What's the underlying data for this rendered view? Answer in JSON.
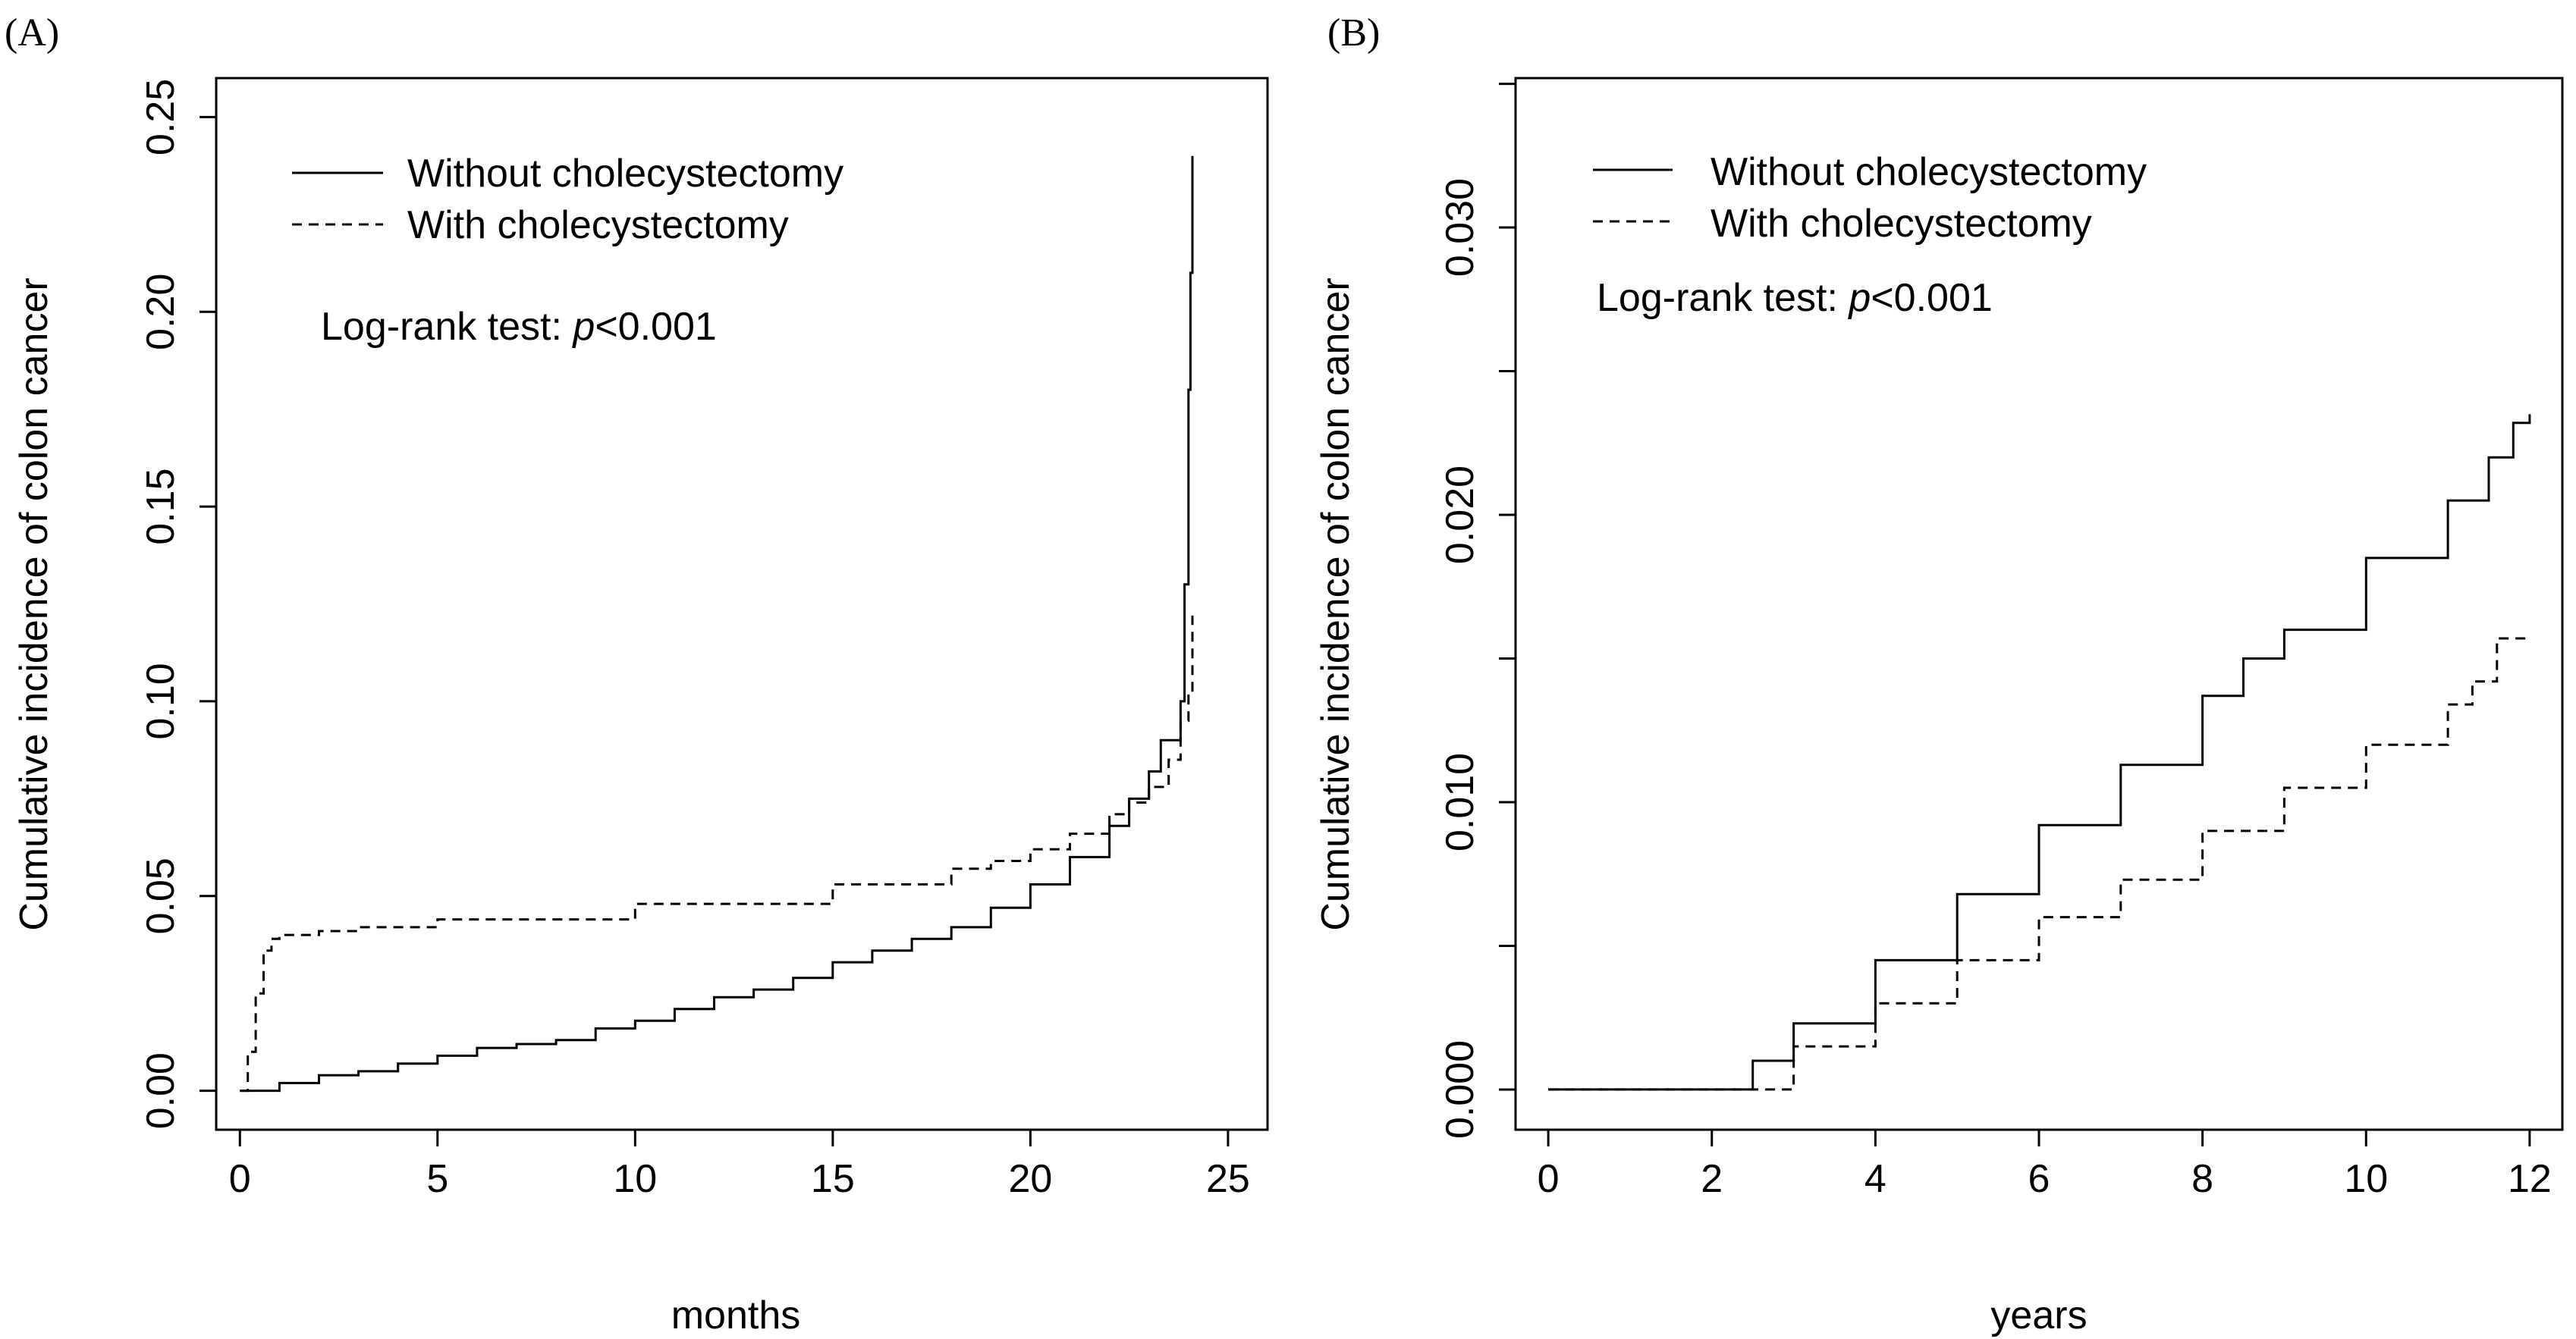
{
  "chart_data": [
    {
      "type": "line",
      "panel_label": "(A)",
      "title": "",
      "xlabel": "months",
      "ylabel": "Cumulative incidence of colon cancer",
      "xlim": [
        -0.6,
        26.0
      ],
      "ylim": [
        -0.01,
        0.26
      ],
      "xticks": [
        0,
        5,
        10,
        15,
        20,
        25
      ],
      "xtick_labels": [
        "0",
        "5",
        "10",
        "15",
        "20",
        "25"
      ],
      "yticks": [
        0.0,
        0.05,
        0.1,
        0.15,
        0.2,
        0.25
      ],
      "ytick_labels": [
        "0.00",
        "0.05",
        "0.10",
        "0.15",
        "0.20",
        "0.25"
      ],
      "grid": false,
      "legend_position": "top-left",
      "annotation": {
        "prefix": "Log-rank test: ",
        "italic": "p",
        "suffix": "<0.001"
      },
      "series": [
        {
          "name": "Without cholecystectomy",
          "linestyle": "solid",
          "x": [
            0,
            1,
            2,
            3,
            4,
            5,
            6,
            7,
            8,
            9,
            10,
            11,
            12,
            13,
            14,
            15,
            16,
            17,
            18,
            19,
            20,
            21,
            22,
            22.5,
            23,
            23.3,
            23.6,
            23.8,
            23.9,
            24.0,
            24.05,
            24.1
          ],
          "y": [
            0.0,
            0.002,
            0.004,
            0.005,
            0.007,
            0.009,
            0.011,
            0.012,
            0.013,
            0.016,
            0.018,
            0.021,
            0.024,
            0.026,
            0.029,
            0.033,
            0.036,
            0.039,
            0.042,
            0.047,
            0.053,
            0.06,
            0.068,
            0.075,
            0.082,
            0.09,
            0.09,
            0.1,
            0.13,
            0.18,
            0.21,
            0.24
          ]
        },
        {
          "name": "With cholecystectomy",
          "linestyle": "dashed",
          "x": [
            0,
            0.2,
            0.4,
            0.6,
            0.8,
            1,
            2,
            3,
            5,
            10,
            15,
            18,
            19,
            20,
            21,
            22,
            22.5,
            23,
            23.5,
            23.8,
            24.0,
            24.1
          ],
          "y": [
            0.0,
            0.01,
            0.025,
            0.036,
            0.039,
            0.04,
            0.041,
            0.042,
            0.044,
            0.048,
            0.053,
            0.057,
            0.059,
            0.062,
            0.066,
            0.071,
            0.074,
            0.078,
            0.085,
            0.095,
            0.102,
            0.122
          ]
        }
      ]
    },
    {
      "type": "line",
      "panel_label": "(B)",
      "title": "",
      "xlabel": "years",
      "ylabel": "Cumulative incidence of colon cancer",
      "xlim": [
        -0.4,
        12.4
      ],
      "ylim": [
        -0.0014,
        0.0352
      ],
      "xticks": [
        0,
        2,
        4,
        6,
        8,
        10,
        12
      ],
      "xtick_labels": [
        "0",
        "2",
        "4",
        "6",
        "8",
        "10",
        "12"
      ],
      "yticks": [
        0.0,
        0.005,
        0.01,
        0.015,
        0.02,
        0.025,
        0.03,
        0.035
      ],
      "ytick_labels": [
        "0.000",
        "",
        "0.010",
        "",
        "0.020",
        "",
        "0.030",
        ""
      ],
      "grid": false,
      "legend_position": "top-left",
      "annotation": {
        "prefix": "Log-rank test: ",
        "italic": "p",
        "suffix": "<0.001"
      },
      "series": [
        {
          "name": "Without cholecystectomy",
          "linestyle": "solid",
          "x": [
            0,
            2,
            2.5,
            3,
            4,
            5,
            6,
            7,
            8,
            8.5,
            9,
            10,
            11,
            11.5,
            11.8,
            12
          ],
          "y": [
            0.0,
            0.0,
            0.001,
            0.0023,
            0.0045,
            0.0068,
            0.0092,
            0.0113,
            0.0137,
            0.015,
            0.016,
            0.0185,
            0.0205,
            0.022,
            0.0232,
            0.0235
          ]
        },
        {
          "name": "With cholecystectomy",
          "linestyle": "dashed",
          "x": [
            0,
            2,
            3,
            4,
            5,
            6,
            7,
            8,
            9,
            10,
            11,
            11.3,
            11.6,
            12
          ],
          "y": [
            0.0,
            0.0,
            0.0015,
            0.003,
            0.0045,
            0.006,
            0.0073,
            0.009,
            0.0105,
            0.012,
            0.0134,
            0.0142,
            0.0157,
            0.0157
          ]
        }
      ]
    }
  ]
}
